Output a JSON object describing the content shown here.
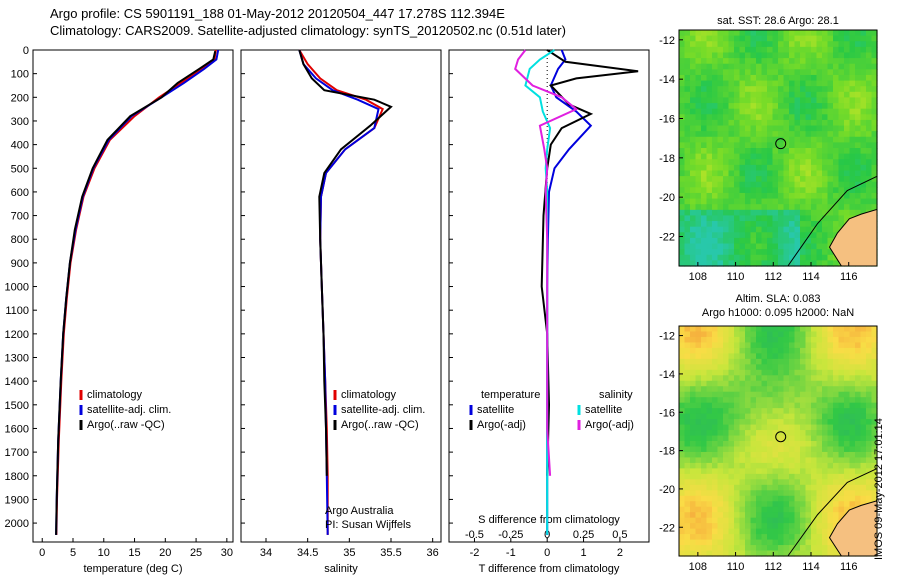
{
  "header": {
    "line1": "Argo profile: CS 5901191_188 01-May-2012 20120504_447 17.278S 112.394E",
    "line2": "Climatology: CARS2009. Satellite-adjusted climatology: synTS_20120502.nc (0.51d later)"
  },
  "colors": {
    "climatology": "#e00000",
    "satellite": "#0000dd",
    "argo": "#000000",
    "sat_salinity": "#00e0e0",
    "argo_salinity": "#e020e0",
    "land": "#f5c080"
  },
  "chart_data": [
    {
      "type": "line",
      "xlabel": "temperature (deg C)",
      "xlim": [
        -1.5,
        31
      ],
      "ylim": [
        0,
        2080
      ],
      "ytick_labels": [
        "0",
        "100",
        "200",
        "300",
        "400",
        "500",
        "600",
        "700",
        "800",
        "900",
        "1000",
        "1100",
        "1200",
        "1300",
        "1400",
        "1500",
        "1600",
        "1700",
        "1800",
        "1900",
        "2000"
      ],
      "xtick_labels": [
        "0",
        "5",
        "10",
        "15",
        "20",
        "25",
        "30"
      ],
      "legend": [
        "climatology",
        "satellite-adj. clim.",
        "Argo(..raw -QC)"
      ],
      "series": [
        {
          "name": "climatology",
          "x": [
            28.2,
            28,
            26,
            22.5,
            19,
            15,
            11,
            8.5,
            6.7,
            5.5,
            4.6,
            4,
            3.5,
            3.1,
            2.7,
            2.4,
            2.3
          ],
          "y": [
            0,
            40,
            80,
            140,
            200,
            280,
            380,
            500,
            620,
            760,
            900,
            1050,
            1200,
            1400,
            1650,
            1900,
            2050
          ]
        },
        {
          "name": "satellite-adj. clim.",
          "x": [
            28.6,
            28.3,
            26.3,
            23,
            19.4,
            14.5,
            10.8,
            8.3,
            6.6,
            5.4,
            4.5,
            3.9,
            3.4,
            3.0,
            2.6,
            2.35,
            2.25
          ],
          "y": [
            0,
            40,
            80,
            140,
            200,
            280,
            380,
            500,
            620,
            760,
            900,
            1050,
            1200,
            1400,
            1650,
            1900,
            2050
          ]
        },
        {
          "name": "Argo(..raw -QC)",
          "x": [
            28.1,
            27.8,
            25.5,
            22,
            19.4,
            14.3,
            10.6,
            8.2,
            6.5,
            5.3,
            4.5,
            3.9,
            3.4,
            3.0,
            2.6,
            2.35,
            2.25
          ],
          "y": [
            5,
            40,
            80,
            140,
            200,
            280,
            380,
            500,
            620,
            760,
            900,
            1050,
            1200,
            1400,
            1650,
            1900,
            2050
          ]
        }
      ]
    },
    {
      "type": "line",
      "xlabel": "salinity",
      "xlim": [
        33.7,
        36.1
      ],
      "ylim": [
        0,
        2080
      ],
      "xtick_labels": [
        "34",
        "34.5",
        "35",
        "35.5",
        "36"
      ],
      "legend": [
        "climatology",
        "satellite-adj. clim.",
        "Argo(..raw -QC)"
      ],
      "annotation": [
        "Argo Australia",
        "PI: Susan Wijffels"
      ],
      "series": [
        {
          "name": "climatology",
          "x": [
            34.4,
            34.5,
            34.65,
            34.85,
            35.2,
            35.4,
            35.3,
            34.95,
            34.72,
            34.66,
            34.65,
            34.67,
            34.69,
            34.71,
            34.73,
            34.74,
            34.74
          ],
          "y": [
            0,
            60,
            120,
            170,
            210,
            250,
            330,
            420,
            520,
            620,
            800,
            1000,
            1200,
            1400,
            1600,
            1800,
            2050
          ]
        },
        {
          "name": "satellite-adj. clim.",
          "x": [
            34.4,
            34.45,
            34.6,
            34.8,
            35.1,
            35.35,
            35.3,
            34.95,
            34.72,
            34.66,
            34.65,
            34.67,
            34.69,
            34.71,
            34.72,
            34.73,
            34.74
          ],
          "y": [
            0,
            60,
            120,
            170,
            210,
            250,
            330,
            420,
            520,
            620,
            800,
            1000,
            1200,
            1400,
            1600,
            1800,
            2050
          ]
        },
        {
          "name": "Argo(..raw -QC)",
          "x": [
            34.4,
            34.45,
            34.55,
            34.7,
            35.3,
            35.5,
            35.25,
            34.9,
            34.7,
            34.64,
            34.65,
            34.67,
            34.69,
            34.7,
            34.72,
            34.73
          ],
          "y": [
            0,
            60,
            120,
            170,
            210,
            240,
            320,
            420,
            520,
            620,
            800,
            1000,
            1200,
            1400,
            1600,
            1800
          ]
        }
      ]
    },
    {
      "type": "line",
      "xlabel": "T difference from climatology",
      "xlabel2": "S difference from climatology",
      "xlim": [
        -2.7,
        2.8
      ],
      "ylim": [
        0,
        2080
      ],
      "xtick_labels": [
        "-2",
        "-1",
        "0",
        "1",
        "2"
      ],
      "xtick2_labels": [
        "-0.5",
        "-0.25",
        "0",
        "0.25",
        "0.5"
      ],
      "legend_groups": [
        {
          "heading": "temperature",
          "items": [
            "satellite",
            "Argo(-adj)"
          ]
        },
        {
          "heading": "salinity",
          "items": [
            "satellite",
            "Argo(-adj)"
          ]
        }
      ],
      "series": [
        {
          "name": "satellite (temperature)",
          "x": [
            0.4,
            0.5,
            0.3,
            0.1,
            0.25,
            0.8,
            1.2,
            0.6,
            0.2,
            0.05,
            0.02,
            0,
            0,
            0,
            0
          ],
          "y": [
            0,
            40,
            80,
            150,
            200,
            260,
            320,
            420,
            500,
            600,
            800,
            1000,
            1400,
            1800,
            2050
          ]
        },
        {
          "name": "Argo(-adj) (temperature)",
          "x": [
            0,
            0.5,
            2.5,
            0.8,
            0.1,
            0.6,
            1.2,
            0.4,
            0.1,
            0.0,
            -0.1,
            -0.15,
            0,
            0.05,
            0
          ],
          "y": [
            0,
            50,
            90,
            120,
            150,
            230,
            270,
            330,
            400,
            500,
            700,
            1000,
            1200,
            1500,
            1800
          ]
        },
        {
          "name": "satellite (salinity)",
          "x": [
            0.05,
            -0.05,
            -0.12,
            -0.15,
            -0.05,
            -0.03,
            0.02,
            0,
            -0.01,
            0,
            0,
            0,
            0
          ],
          "y": [
            0,
            40,
            80,
            150,
            200,
            260,
            330,
            420,
            500,
            600,
            800,
            1200,
            2050
          ]
        },
        {
          "name": "Argo(-adj) (salinity)",
          "x": [
            -0.15,
            -0.2,
            -0.22,
            -0.1,
            0.1,
            0.2,
            -0.05,
            -0.02,
            0,
            -0.01,
            0,
            0,
            0,
            0.02
          ],
          "y": [
            0,
            40,
            80,
            150,
            200,
            250,
            320,
            420,
            500,
            600,
            800,
            1200,
            1600,
            1800
          ]
        }
      ]
    }
  ],
  "maps": [
    {
      "title": "sat. SST: 28.6 Argo: 28.1",
      "xtick_labels": [
        "108",
        "110",
        "112",
        "114",
        "116"
      ],
      "ytick_labels": [
        "-12",
        "-14",
        "-16",
        "-18",
        "-20",
        "-22"
      ],
      "colorscheme": "sst"
    },
    {
      "title_line1": "Altim. SLA: 0.083",
      "title_line2": "Argo h1000: 0.095 h2000: NaN",
      "xtick_labels": [
        "108",
        "110",
        "112",
        "114",
        "116"
      ],
      "ytick_labels": [
        "-12",
        "-14",
        "-16",
        "-18",
        "-20",
        "-22"
      ],
      "colorscheme": "sla"
    }
  ],
  "stamp": "IMOS 09-May-2012 17:01:14"
}
